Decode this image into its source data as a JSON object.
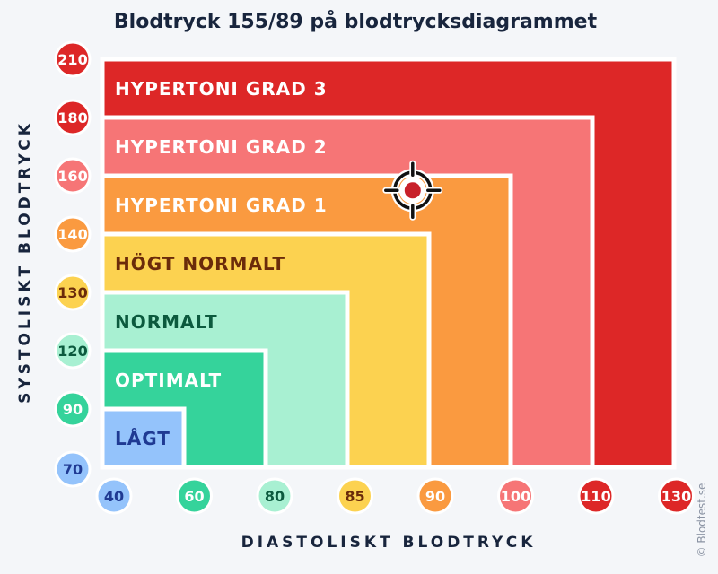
{
  "title": "Blodtryck 155/89 på blodtrycksdiagrammet",
  "credit": "© Blodtest.se",
  "chart_data": {
    "type": "area",
    "title": "Blodtryck 155/89 på blodtrycksdiagrammet",
    "xlabel": "DIASTOLISKT BLODTRYCK",
    "ylabel": "SYSTOLISKT BLODTRYCK",
    "x_ticks": [
      "40",
      "60",
      "80",
      "85",
      "90",
      "100",
      "110",
      "130"
    ],
    "y_ticks": [
      "70",
      "90",
      "120",
      "130",
      "140",
      "160",
      "180",
      "210"
    ],
    "scale": "ordinal (equal spacing between tick labels)",
    "zones": [
      {
        "name": "LÅGT",
        "systolic_max": 90,
        "diastolic_max": 60,
        "color": "#94c3fb",
        "text_color": "#1f3a93"
      },
      {
        "name": "OPTIMALT",
        "systolic_max": 120,
        "diastolic_max": 80,
        "color": "#35d39b",
        "text_color": "#ffffff"
      },
      {
        "name": "NORMALT",
        "systolic_max": 130,
        "diastolic_max": 85,
        "color": "#a8f0d2",
        "text_color": "#0c5a3e"
      },
      {
        "name": "HÖGT NORMALT",
        "systolic_max": 140,
        "diastolic_max": 90,
        "color": "#fcd250",
        "text_color": "#6b2b0a"
      },
      {
        "name": "HYPERTONI GRAD 1",
        "systolic_max": 160,
        "diastolic_max": 100,
        "color": "#fa9a40",
        "text_color": "#ffffff"
      },
      {
        "name": "HYPERTONI GRAD 2",
        "systolic_max": 180,
        "diastolic_max": 110,
        "color": "#f67576",
        "text_color": "#ffffff"
      },
      {
        "name": "HYPERTONI GRAD 3",
        "systolic_max": 210,
        "diastolic_max": 130,
        "color": "#dd2727",
        "text_color": "#ffffff"
      }
    ],
    "x_tick_colors": [
      "#94c3fb",
      "#35d39b",
      "#a8f0d2",
      "#fcd250",
      "#fa9a40",
      "#f67576",
      "#dd2727",
      "#dd2727"
    ],
    "y_tick_colors": [
      "#94c3fb",
      "#35d39b",
      "#a8f0d2",
      "#fcd250",
      "#fa9a40",
      "#f67576",
      "#dd2727",
      "#dd2727"
    ],
    "tick_text_colors": [
      "#1f3a93",
      "#ffffff",
      "#0c5a3e",
      "#6b2b0a",
      "#ffffff",
      "#ffffff",
      "#ffffff",
      "#ffffff"
    ],
    "marker": {
      "systolic": 155,
      "diastolic": 89,
      "icon": "crosshair-target-icon",
      "color": "#c8202a"
    }
  }
}
